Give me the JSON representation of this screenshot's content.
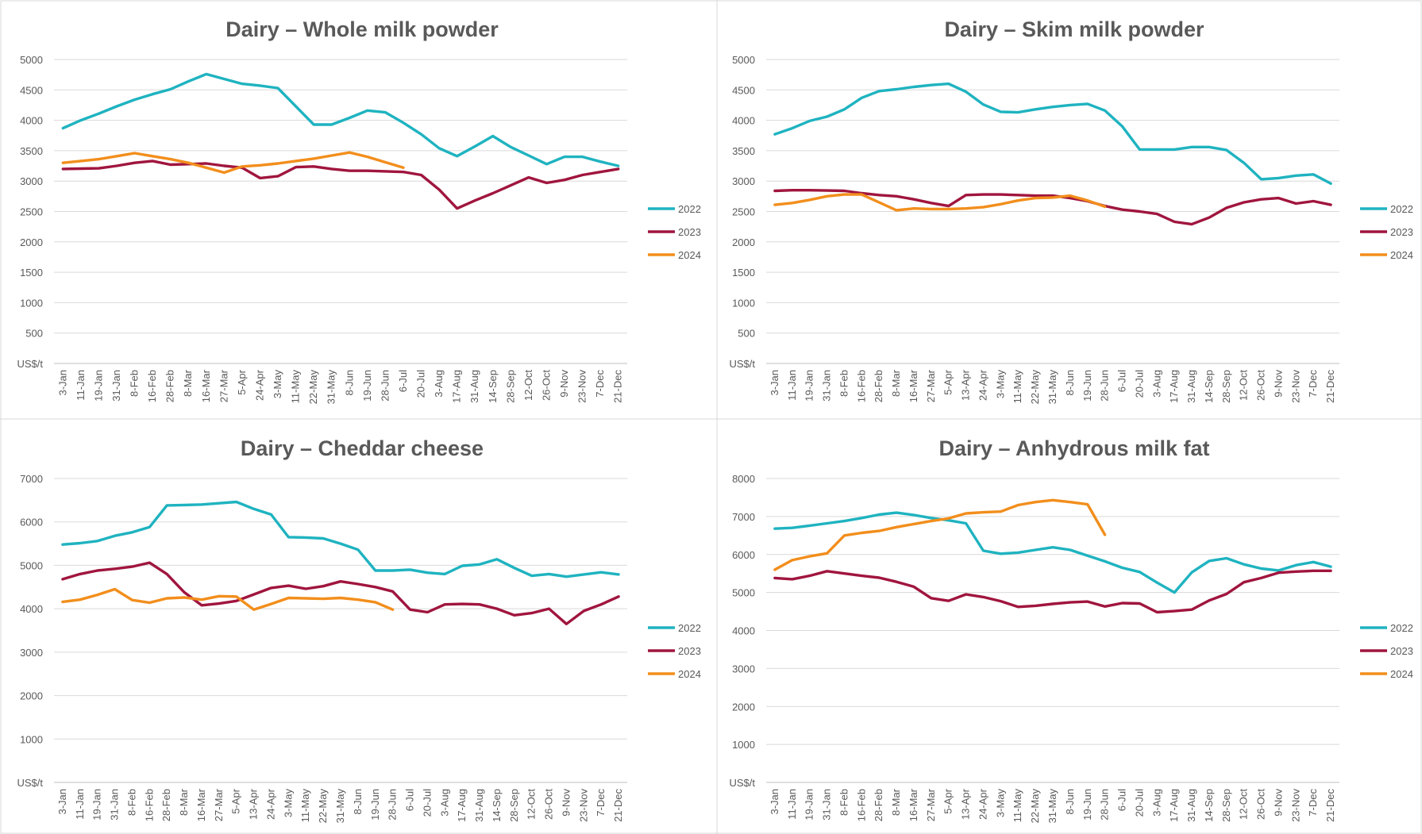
{
  "chart_data": [
    {
      "type": "line",
      "title": "Dairy – Whole milk powder",
      "categories": [
        "3-Jan",
        "11-Jan",
        "19-Jan",
        "31-Jan",
        "8-Feb",
        "16-Feb",
        "28-Feb",
        "8-Mar",
        "16-Mar",
        "27-Mar",
        "5-Apr",
        "24-Apr",
        "3-May",
        "11-May",
        "22-May",
        "31-May",
        "8-Jun",
        "19-Jun",
        "28-Jun",
        "6-Jul",
        "20-Jul",
        "3-Aug",
        "17-Aug",
        "31-Aug",
        "14-Sep",
        "28-Sep",
        "12-Oct",
        "26-Oct",
        "9-Nov",
        "23-Nov",
        "7-Dec",
        "21-Dec"
      ],
      "series": [
        {
          "name": "2022",
          "color": "#1fb3c0",
          "values": [
            3870,
            4000,
            4110,
            4230,
            4340,
            4430,
            4510,
            4640,
            4760,
            4680,
            4600,
            4570,
            4530,
            4230,
            3930,
            3930,
            4040,
            4160,
            4130,
            3960,
            3770,
            3540,
            3410,
            3570,
            3740,
            3560,
            3420,
            3280,
            3400,
            3400,
            3320,
            3250
          ]
        },
        {
          "name": "2023",
          "color": "#a0153e",
          "values": [
            3200,
            3205,
            3210,
            3250,
            3300,
            3330,
            3270,
            3280,
            3290,
            3250,
            3220,
            3050,
            3080,
            3230,
            3240,
            3200,
            3170,
            3170,
            3160,
            3150,
            3100,
            2860,
            2550,
            2680,
            2800,
            2930,
            3060,
            2970,
            3020,
            3100,
            3150,
            3200
          ]
        },
        {
          "name": "2024",
          "color": "#f28e1c",
          "values": [
            3300,
            3330,
            3360,
            3410,
            3460,
            3410,
            3360,
            3300,
            3220,
            3140,
            3240,
            3260,
            3290,
            3330,
            3370,
            3420,
            3470,
            3400,
            3310,
            3220,
            null,
            null,
            null,
            null,
            null,
            null,
            null,
            null,
            null,
            null,
            null,
            null
          ]
        }
      ],
      "ylim": [
        0,
        5000
      ],
      "yticks": [
        {
          "value": 0,
          "label": "US$/t"
        },
        500,
        1000,
        1500,
        2000,
        2500,
        3000,
        3500,
        4000,
        4500,
        5000
      ],
      "grid": true,
      "legend": "right"
    },
    {
      "type": "line",
      "title": "Dairy – Skim milk powder",
      "categories": [
        "3-Jan",
        "11-Jan",
        "19-Jan",
        "31-Jan",
        "8-Feb",
        "16-Feb",
        "28-Feb",
        "8-Mar",
        "16-Mar",
        "27-Mar",
        "5-Apr",
        "13-Apr",
        "24-Apr",
        "3-May",
        "11-May",
        "22-May",
        "31-May",
        "8-Jun",
        "19-Jun",
        "28-Jun",
        "6-Jul",
        "20-Jul",
        "3-Aug",
        "17-Aug",
        "31-Aug",
        "14-Sep",
        "28-Sep",
        "12-Oct",
        "26-Oct",
        "9-Nov",
        "23-Nov",
        "7-Dec",
        "21-Dec"
      ],
      "series": [
        {
          "name": "2022",
          "color": "#1fb3c0",
          "values": [
            3770,
            3870,
            3990,
            4060,
            4180,
            4370,
            4480,
            4510,
            4550,
            4580,
            4600,
            4470,
            4260,
            4140,
            4130,
            4180,
            4220,
            4250,
            4270,
            4160,
            3900,
            3520,
            3520,
            3520,
            3560,
            3560,
            3510,
            3300,
            3030,
            3050,
            3090,
            3110,
            2960
          ]
        },
        {
          "name": "2023",
          "color": "#a0153e",
          "values": [
            2840,
            2850,
            2850,
            2845,
            2840,
            2800,
            2770,
            2750,
            2700,
            2640,
            2590,
            2770,
            2780,
            2780,
            2770,
            2760,
            2760,
            2720,
            2670,
            2590,
            2530,
            2500,
            2460,
            2330,
            2290,
            2400,
            2560,
            2650,
            2700,
            2720,
            2630,
            2670,
            2610
          ]
        },
        {
          "name": "2024",
          "color": "#f28e1c",
          "values": [
            2610,
            2640,
            2690,
            2750,
            2780,
            2780,
            2650,
            2520,
            2550,
            2540,
            2540,
            2550,
            2570,
            2620,
            2680,
            2720,
            2730,
            2760,
            2680,
            2580,
            null,
            null,
            null,
            null,
            null,
            null,
            null,
            null,
            null,
            null,
            null,
            null,
            null
          ]
        }
      ],
      "ylim": [
        0,
        5000
      ],
      "yticks": [
        {
          "value": 0,
          "label": "US$/t"
        },
        500,
        1000,
        1500,
        2000,
        2500,
        3000,
        3500,
        4000,
        4500,
        5000
      ],
      "grid": true,
      "legend": "right"
    },
    {
      "type": "line",
      "title": "Dairy – Cheddar cheese",
      "categories": [
        "3-Jan",
        "11-Jan",
        "19-Jan",
        "31-Jan",
        "8-Feb",
        "16-Feb",
        "28-Feb",
        "8-Mar",
        "16-Mar",
        "27-Mar",
        "5-Apr",
        "13-Apr",
        "24-Apr",
        "3-May",
        "11-May",
        "22-May",
        "31-May",
        "8-Jun",
        "19-Jun",
        "28-Jun",
        "6-Jul",
        "20-Jul",
        "3-Aug",
        "17-Aug",
        "31-Aug",
        "14-Sep",
        "28-Sep",
        "12-Oct",
        "26-Oct",
        "9-Nov",
        "23-Nov",
        "7-Dec",
        "21-Dec"
      ],
      "series": [
        {
          "name": "2022",
          "color": "#1fb3c0",
          "values": [
            5480,
            5510,
            5560,
            5680,
            5760,
            5880,
            6380,
            6390,
            6400,
            6430,
            6460,
            6300,
            6170,
            5650,
            5640,
            5620,
            5500,
            5360,
            4880,
            4880,
            4900,
            4830,
            4800,
            4990,
            5020,
            5140,
            4940,
            4760,
            4800,
            4740,
            4790,
            4840,
            4790
          ]
        },
        {
          "name": "2023",
          "color": "#a0153e",
          "values": [
            4680,
            4800,
            4880,
            4920,
            4970,
            5060,
            4800,
            4380,
            4080,
            4120,
            4180,
            4330,
            4480,
            4530,
            4460,
            4520,
            4630,
            4570,
            4500,
            4400,
            3980,
            3920,
            4100,
            4110,
            4100,
            4000,
            3850,
            3900,
            4000,
            3650,
            3950,
            4100,
            4280
          ]
        },
        {
          "name": "2024",
          "color": "#f28e1c",
          "values": [
            4160,
            4210,
            4320,
            4450,
            4200,
            4140,
            4240,
            4260,
            4210,
            4290,
            4280,
            3980,
            4110,
            4250,
            4240,
            4230,
            4250,
            4210,
            4150,
            3980,
            null,
            null,
            null,
            null,
            null,
            null,
            null,
            null,
            null,
            null,
            null,
            null,
            null
          ]
        }
      ],
      "ylim": [
        0,
        7000
      ],
      "yticks": [
        {
          "value": 0,
          "label": "US$/t"
        },
        1000,
        2000,
        3000,
        4000,
        5000,
        6000,
        7000
      ],
      "grid": true,
      "legend": "right"
    },
    {
      "type": "line",
      "title": "Dairy – Anhydrous milk fat",
      "categories": [
        "3-Jan",
        "11-Jan",
        "19-Jan",
        "31-Jan",
        "8-Feb",
        "16-Feb",
        "28-Feb",
        "8-Mar",
        "16-Mar",
        "27-Mar",
        "5-Apr",
        "13-Apr",
        "24-Apr",
        "3-May",
        "11-May",
        "22-May",
        "31-May",
        "8-Jun",
        "19-Jun",
        "28-Jun",
        "6-Jul",
        "20-Jul",
        "3-Aug",
        "17-Aug",
        "31-Aug",
        "14-Sep",
        "28-Sep",
        "12-Oct",
        "26-Oct",
        "9-Nov",
        "23-Nov",
        "7-Dec",
        "21-Dec"
      ],
      "series": [
        {
          "name": "2022",
          "color": "#1fb3c0",
          "values": [
            6680,
            6700,
            6760,
            6820,
            6880,
            6960,
            7050,
            7100,
            7040,
            6960,
            6900,
            6820,
            6100,
            6020,
            6050,
            6120,
            6190,
            6120,
            5970,
            5820,
            5650,
            5540,
            5260,
            5000,
            5530,
            5830,
            5900,
            5740,
            5630,
            5580,
            5720,
            5800,
            5680
          ]
        },
        {
          "name": "2023",
          "color": "#a0153e",
          "values": [
            5380,
            5350,
            5440,
            5560,
            5500,
            5440,
            5390,
            5280,
            5150,
            4850,
            4780,
            4950,
            4880,
            4770,
            4620,
            4650,
            4700,
            4740,
            4760,
            4630,
            4720,
            4710,
            4480,
            4510,
            4550,
            4790,
            4960,
            5270,
            5380,
            5520,
            5550,
            5570,
            5570
          ]
        },
        {
          "name": "2024",
          "color": "#f28e1c",
          "values": [
            5600,
            5850,
            5950,
            6030,
            6500,
            6570,
            6620,
            6720,
            6800,
            6880,
            6950,
            7080,
            7110,
            7130,
            7300,
            7380,
            7430,
            7380,
            7320,
            6520,
            null,
            null,
            null,
            null,
            null,
            null,
            null,
            null,
            null,
            null,
            null,
            null,
            null
          ]
        }
      ],
      "ylim": [
        0,
        8000
      ],
      "yticks": [
        {
          "value": 0,
          "label": "US$/t"
        },
        1000,
        2000,
        3000,
        4000,
        5000,
        6000,
        7000,
        8000
      ],
      "grid": true,
      "legend": "right"
    }
  ]
}
